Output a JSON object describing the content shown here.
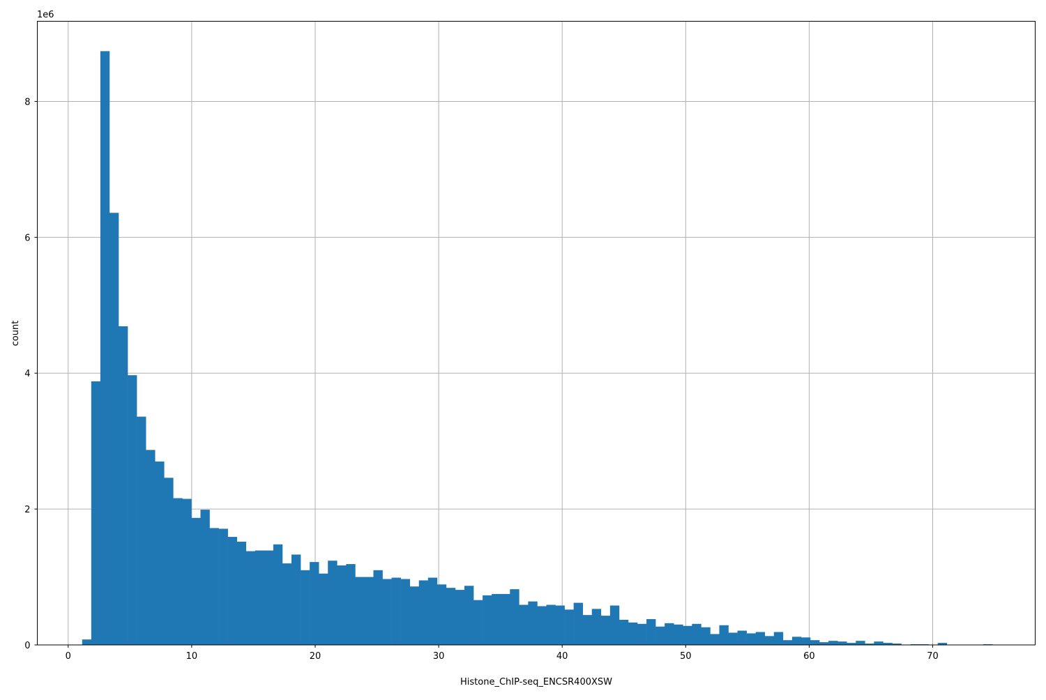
{
  "chart_data": {
    "type": "bar",
    "subtype": "histogram",
    "title": "",
    "xlabel": "Histone_ChIP-seq_ENCSR400XSW",
    "ylabel": "count",
    "y_offset_label": "1e6",
    "xlim": [
      -2.5,
      78.3
    ],
    "ylim": [
      0,
      9.18
    ],
    "xticks": [
      0,
      10,
      20,
      30,
      40,
      50,
      60,
      70
    ],
    "yticks": [
      0,
      2,
      4,
      6,
      8
    ],
    "grid": true,
    "color": "#1f77b4",
    "bin_start": 1.13,
    "bin_width": 0.737,
    "values": [
      0.08,
      3.88,
      8.74,
      6.36,
      4.69,
      3.97,
      3.36,
      2.87,
      2.7,
      2.46,
      2.16,
      2.15,
      1.87,
      1.99,
      1.72,
      1.71,
      1.59,
      1.52,
      1.38,
      1.39,
      1.39,
      1.48,
      1.2,
      1.33,
      1.1,
      1.22,
      1.05,
      1.24,
      1.17,
      1.19,
      1.0,
      1.0,
      1.1,
      0.97,
      0.99,
      0.97,
      0.86,
      0.95,
      0.99,
      0.89,
      0.84,
      0.81,
      0.87,
      0.66,
      0.73,
      0.75,
      0.75,
      0.82,
      0.59,
      0.64,
      0.57,
      0.59,
      0.58,
      0.52,
      0.62,
      0.44,
      0.53,
      0.43,
      0.58,
      0.37,
      0.33,
      0.31,
      0.38,
      0.27,
      0.32,
      0.3,
      0.28,
      0.31,
      0.26,
      0.16,
      0.29,
      0.18,
      0.21,
      0.17,
      0.19,
      0.13,
      0.19,
      0.07,
      0.12,
      0.11,
      0.07,
      0.04,
      0.06,
      0.05,
      0.03,
      0.06,
      0.02,
      0.05,
      0.03,
      0.02,
      0.0,
      0.01,
      0.01,
      0.0,
      0.03,
      0.0,
      0.0,
      0.0,
      0.0,
      0.01
    ]
  }
}
